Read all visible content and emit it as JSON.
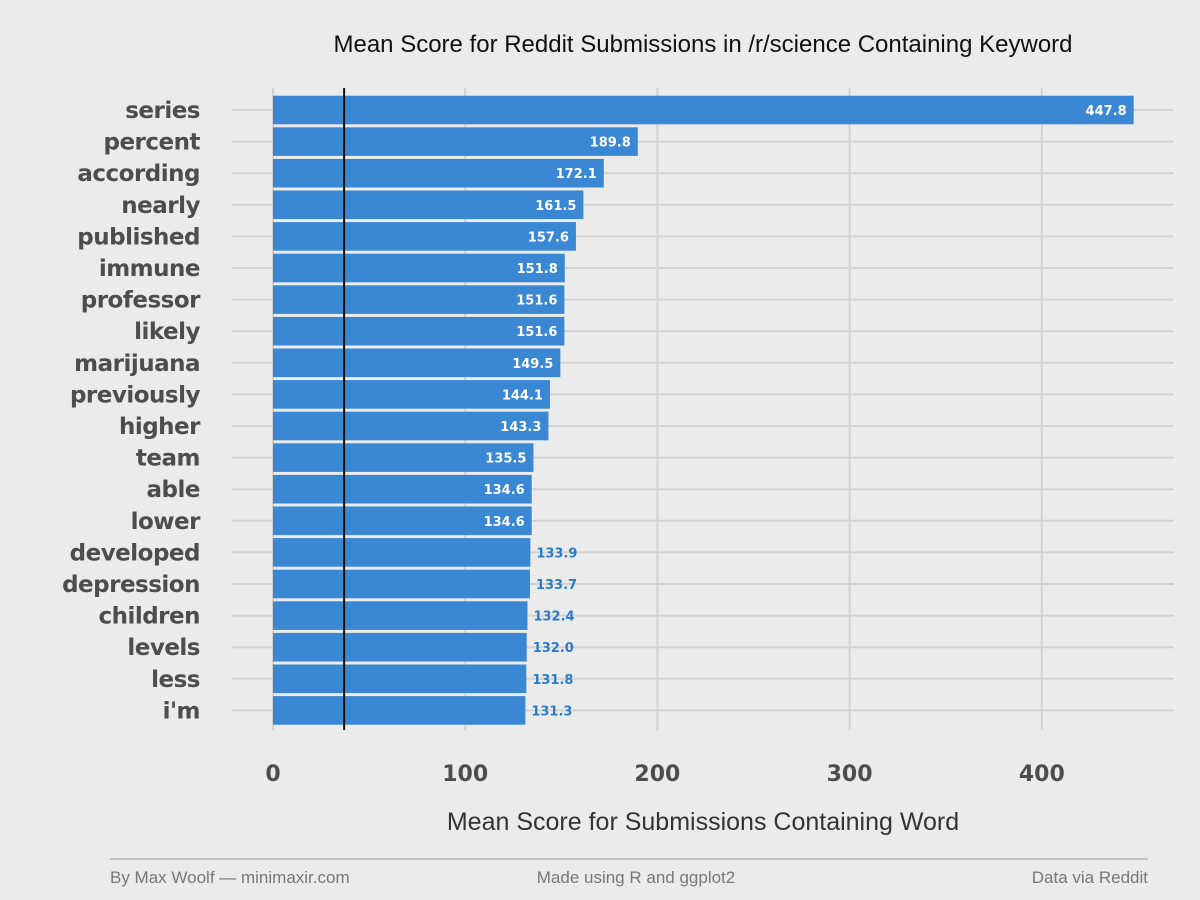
{
  "chart_data": {
    "type": "bar",
    "orientation": "horizontal",
    "title": "Mean Score for Reddit Submissions in /r/science Containing Keyword",
    "xlabel": "Mean Score for Submissions Containing Word",
    "ylabel": "",
    "categories": [
      "series",
      "percent",
      "according",
      "nearly",
      "published",
      "immune",
      "professor",
      "likely",
      "marijuana",
      "previously",
      "higher",
      "team",
      "able",
      "lower",
      "developed",
      "depression",
      "children",
      "levels",
      "less",
      "i'm"
    ],
    "values": [
      447.8,
      189.8,
      172.1,
      161.5,
      157.6,
      151.8,
      151.6,
      151.6,
      149.5,
      144.1,
      143.3,
      135.5,
      134.6,
      134.6,
      133.9,
      133.7,
      132.4,
      132.0,
      131.8,
      131.3
    ],
    "value_labels": [
      "447.8",
      "189.8",
      "172.1",
      "161.5",
      "157.6",
      "151.8",
      "151.6",
      "151.6",
      "149.5",
      "144.1",
      "143.3",
      "135.5",
      "134.6",
      "134.6",
      "133.9",
      "133.7",
      "132.4",
      "132.0",
      "131.8",
      "131.3"
    ],
    "xlim": [
      0,
      455
    ],
    "xticks": [
      0,
      100,
      200,
      300,
      400
    ],
    "xtick_labels": [
      "0",
      "100",
      "200",
      "300",
      "400"
    ],
    "reference_line_x": 37,
    "grid": true,
    "bar_color": "#3a87d4",
    "label_inside_color": "#ffffff",
    "label_outside_color": "#2c7bc9",
    "background_color": "#ebebeb"
  },
  "footer": {
    "left": "By Max Woolf — minimaxir.com",
    "center": "Made using R and ggplot2",
    "right": "Data via Reddit"
  }
}
